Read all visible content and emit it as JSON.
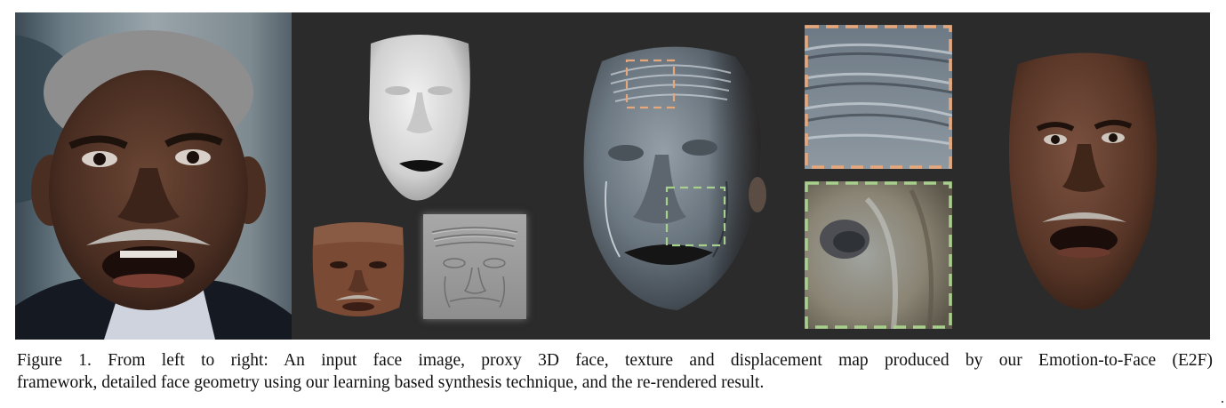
{
  "figure": {
    "panels": [
      {
        "name": "input-face-image"
      },
      {
        "name": "proxy-3d-face"
      },
      {
        "name": "texture-map"
      },
      {
        "name": "displacement-map"
      },
      {
        "name": "detailed-face-geometry"
      },
      {
        "name": "detail-crop-forehead"
      },
      {
        "name": "detail-crop-nose"
      },
      {
        "name": "re-rendered-result"
      }
    ],
    "colors": {
      "background": "#2b2b2b",
      "forehead_box": "#e8a77a",
      "nose_box": "#a8d08d"
    }
  },
  "caption": {
    "line1": "Figure 1. From left to right: An input face image, proxy 3D face, texture and displacement map produced by our Emotion-to-Face (E2F)",
    "line2": "framework, detailed face geometry using our learning based synthesis technique, and the re-rendered result."
  }
}
